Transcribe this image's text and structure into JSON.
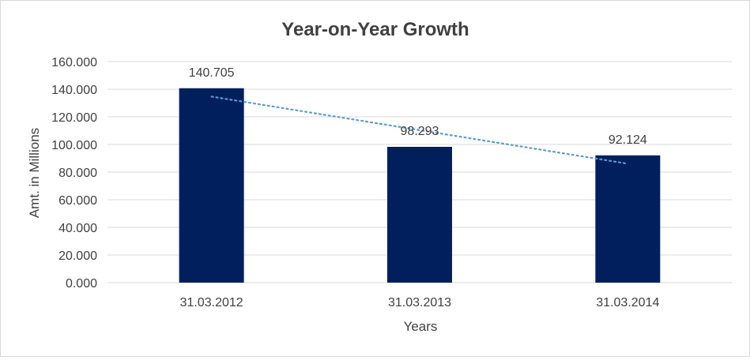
{
  "chart_data": {
    "type": "bar",
    "title": "Year-on-Year Growth",
    "xlabel": "Years",
    "ylabel": "Amt. in Millions",
    "categories": [
      "31.03.2012",
      "31.03.2013",
      "31.03.2014"
    ],
    "values": [
      140.705,
      98.293,
      92.124
    ],
    "data_labels": [
      "140.705",
      "98.293",
      "92.124"
    ],
    "ylim": [
      0,
      160
    ],
    "yticks": [
      0,
      20,
      40,
      60,
      80,
      100,
      120,
      140,
      160
    ],
    "ytick_labels": [
      "0.000",
      "20.000",
      "40.000",
      "60.000",
      "80.000",
      "100.000",
      "120.000",
      "140.000",
      "160.000"
    ],
    "grid": true,
    "trendline": "linear",
    "colors": {
      "bar": "#001f5c",
      "trendline": "#5b9bd5",
      "grid": "#d9d9d9",
      "text": "#404040"
    }
  }
}
